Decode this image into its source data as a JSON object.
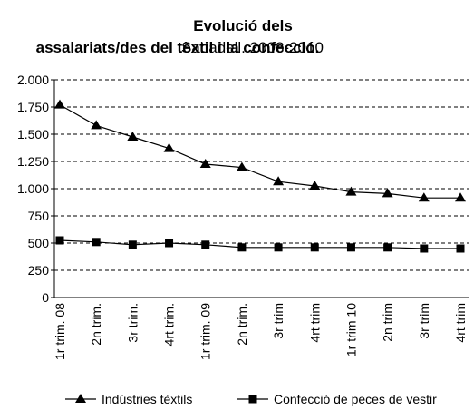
{
  "chart_data": {
    "type": "line",
    "title": "Evolució dels assalariats/des del tèxtil i la confecció.",
    "subtitle": "Sabadell. 2008-2010",
    "categories": [
      "1r trim. 08",
      "2n trim.",
      "3r trim.",
      "4rt trim.",
      "1r trim. 09",
      "2n trim.",
      "3r trim",
      "4rt trim",
      "1r trim 10",
      "2n trim",
      "3r trim",
      "4rt trim"
    ],
    "series": [
      {
        "name": "Indústries tèxtils",
        "color": "#000000",
        "marker": "triangle",
        "values": [
          1770,
          1580,
          1475,
          1370,
          1225,
          1195,
          1065,
          1025,
          970,
          955,
          915,
          915
        ]
      },
      {
        "name": "Confecció de peces de vestir",
        "color": "#000000",
        "marker": "square",
        "values": [
          525,
          510,
          485,
          500,
          485,
          460,
          460,
          460,
          460,
          460,
          450,
          450
        ]
      }
    ],
    "ylim": [
      0,
      2000
    ],
    "yticks": [
      0,
      250,
      500,
      750,
      {
        "value": 1000,
        "label": "1.000"
      },
      {
        "value": 1250,
        "label": "1.250"
      },
      {
        "value": 1500,
        "label": "1.500"
      },
      {
        "value": 1750,
        "label": "1.750"
      },
      {
        "value": 2000,
        "label": "2.000"
      }
    ],
    "grid": true
  }
}
